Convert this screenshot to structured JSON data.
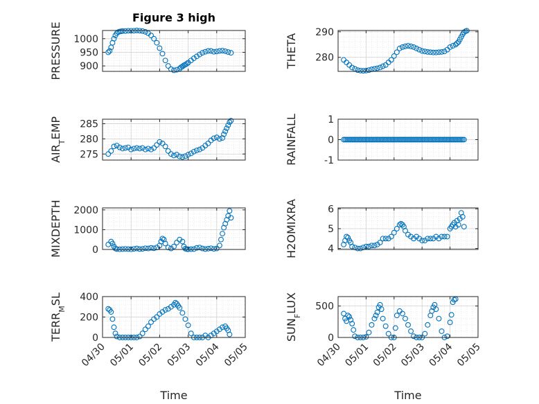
{
  "figure": {
    "title": "Figure 3 high",
    "marker_color": "#0072BD"
  },
  "chart_data": [
    {
      "type": "scatter",
      "ylabel": "PRESSURE",
      "title": "Figure 3 high",
      "xlabel": "",
      "xlim": [
        0,
        5
      ],
      "ylim": [
        880,
        1030
      ],
      "yticks": [
        900,
        950,
        1000
      ],
      "ytick_labels": [
        "900",
        "950",
        "1000"
      ],
      "grid": true,
      "x": [
        0.2,
        0.25,
        0.3,
        0.35,
        0.4,
        0.45,
        0.5,
        0.55,
        0.6,
        0.65,
        0.7,
        0.8,
        0.9,
        1.0,
        1.1,
        1.2,
        1.3,
        1.4,
        1.5,
        1.6,
        1.7,
        1.8,
        1.9,
        2.0,
        2.1,
        2.2,
        2.3,
        2.4,
        2.5,
        2.6,
        2.7,
        2.75,
        2.8,
        2.85,
        2.9,
        2.95,
        3.0,
        3.1,
        3.2,
        3.3,
        3.4,
        3.5,
        3.6,
        3.7,
        3.8,
        3.9,
        4.0,
        4.1,
        4.2,
        4.3,
        4.4,
        4.5
      ],
      "y": [
        950,
        955,
        968,
        985,
        1000,
        1012,
        1020,
        1024,
        1026,
        1027,
        1028,
        1028,
        1029,
        1029,
        1029,
        1030,
        1029,
        1028,
        1025,
        1020,
        1012,
        1000,
        985,
        965,
        945,
        920,
        900,
        888,
        884,
        886,
        890,
        895,
        898,
        902,
        905,
        908,
        912,
        920,
        928,
        935,
        942,
        948,
        952,
        955,
        955,
        952,
        953,
        955,
        956,
        954,
        951,
        948
      ]
    },
    {
      "type": "scatter",
      "ylabel": "THETA",
      "xlabel": "",
      "xlim": [
        0,
        5
      ],
      "ylim": [
        274.5,
        290.5
      ],
      "yticks": [
        280,
        290
      ],
      "ytick_labels": [
        "280",
        "290"
      ],
      "grid": true,
      "x": [
        0.2,
        0.3,
        0.4,
        0.5,
        0.6,
        0.7,
        0.8,
        0.9,
        1.0,
        1.1,
        1.2,
        1.3,
        1.4,
        1.5,
        1.6,
        1.7,
        1.8,
        1.9,
        2.0,
        2.1,
        2.2,
        2.3,
        2.4,
        2.5,
        2.6,
        2.7,
        2.8,
        2.9,
        3.0,
        3.1,
        3.2,
        3.3,
        3.4,
        3.5,
        3.6,
        3.7,
        3.8,
        3.9,
        4.0,
        4.1,
        4.2,
        4.25,
        4.3,
        4.35,
        4.4,
        4.45,
        4.5,
        4.55,
        4.6
      ],
      "y": [
        279,
        278,
        277,
        276,
        275.5,
        275,
        274.8,
        274.7,
        274.8,
        275,
        275.3,
        275.5,
        275.7,
        276,
        276.5,
        277,
        278,
        279,
        280.5,
        282,
        283.5,
        284,
        284.3,
        284.5,
        284.3,
        284,
        283.5,
        283,
        282.5,
        282.3,
        282.1,
        282,
        281.9,
        281.9,
        282,
        282.1,
        282.3,
        283,
        284,
        284.5,
        285,
        285.5,
        286,
        287,
        288,
        289,
        289.8,
        290.2,
        290.4
      ]
    },
    {
      "type": "scatter",
      "ylabel": "AIR_TEMP",
      "ylabel_parts": [
        "AIR",
        "T",
        "EMP"
      ],
      "xlabel": "",
      "xlim": [
        0,
        5
      ],
      "ylim": [
        273,
        286.5
      ],
      "yticks": [
        275,
        280,
        285
      ],
      "ytick_labels": [
        "275",
        "280",
        "285"
      ],
      "grid": true,
      "x": [
        0.2,
        0.3,
        0.4,
        0.5,
        0.6,
        0.7,
        0.8,
        0.9,
        1.0,
        1.1,
        1.2,
        1.3,
        1.4,
        1.5,
        1.6,
        1.7,
        1.8,
        1.9,
        2.0,
        2.1,
        2.2,
        2.3,
        2.4,
        2.5,
        2.6,
        2.7,
        2.8,
        2.9,
        3.0,
        3.1,
        3.2,
        3.3,
        3.4,
        3.5,
        3.6,
        3.7,
        3.8,
        3.9,
        4.0,
        4.1,
        4.2,
        4.25,
        4.3,
        4.35,
        4.4,
        4.45,
        4.5
      ],
      "y": [
        275,
        276,
        277.5,
        277.8,
        277.2,
        276.8,
        277,
        277.2,
        276.5,
        276.8,
        277,
        276.8,
        277,
        276.5,
        276.8,
        276.5,
        277,
        278,
        279,
        278.5,
        277.5,
        276,
        275,
        274.5,
        274.8,
        274.2,
        274,
        274.3,
        274.8,
        275.2,
        275.8,
        276.2,
        276.5,
        277,
        277.8,
        278.5,
        279.5,
        280.2,
        280.5,
        280,
        280.3,
        281.5,
        282.5,
        283.5,
        284.5,
        285.5,
        286
      ]
    },
    {
      "type": "scatter",
      "ylabel": "RAINFALL",
      "xlabel": "",
      "xlim": [
        0,
        5
      ],
      "ylim": [
        -1,
        1
      ],
      "yticks": [
        -1,
        0,
        1
      ],
      "ytick_labels": [
        "-1",
        "0",
        "1"
      ],
      "grid": true,
      "x": [
        0.2,
        0.25,
        0.3,
        0.35,
        0.4,
        0.45,
        0.5,
        0.55,
        0.6,
        0.65,
        0.7,
        0.75,
        0.8,
        0.85,
        0.9,
        0.95,
        1.0,
        1.05,
        1.1,
        1.15,
        1.2,
        1.25,
        1.3,
        1.35,
        1.4,
        1.45,
        1.5,
        1.55,
        1.6,
        1.65,
        1.7,
        1.75,
        1.8,
        1.85,
        1.9,
        1.95,
        2.0,
        2.05,
        2.1,
        2.15,
        2.2,
        2.25,
        2.3,
        2.35,
        2.4,
        2.45,
        2.5,
        2.55,
        2.6,
        2.65,
        2.7,
        2.75,
        2.8,
        2.85,
        2.9,
        2.95,
        3.0,
        3.05,
        3.1,
        3.15,
        3.2,
        3.25,
        3.3,
        3.35,
        3.4,
        3.45,
        3.5,
        3.55,
        3.6,
        3.65,
        3.7,
        3.75,
        3.8,
        3.85,
        3.9,
        3.95,
        4.0,
        4.05,
        4.1,
        4.15,
        4.2,
        4.25,
        4.3,
        4.35,
        4.4,
        4.45,
        4.5
      ],
      "y": [
        0,
        0,
        0,
        0,
        0,
        0,
        0,
        0,
        0,
        0,
        0,
        0,
        0,
        0,
        0,
        0,
        0,
        0,
        0,
        0,
        0,
        0,
        0,
        0,
        0,
        0,
        0,
        0,
        0,
        0,
        0,
        0,
        0,
        0,
        0,
        0,
        0,
        0,
        0,
        0,
        0,
        0,
        0,
        0,
        0,
        0,
        0,
        0,
        0,
        0,
        0,
        0,
        0,
        0,
        0,
        0,
        0,
        0,
        0,
        0,
        0,
        0,
        0,
        0,
        0,
        0,
        0,
        0,
        0,
        0,
        0,
        0,
        0,
        0,
        0,
        0,
        0,
        0,
        0,
        0,
        0,
        0,
        0,
        0,
        0,
        0,
        0
      ]
    },
    {
      "type": "scatter",
      "ylabel": "MIXDEPTH",
      "xlabel": "",
      "xlim": [
        0,
        5
      ],
      "ylim": [
        0,
        2100
      ],
      "yticks": [
        0,
        1000,
        2000
      ],
      "ytick_labels": [
        "0",
        "1000",
        "2000"
      ],
      "grid": true,
      "x": [
        0.2,
        0.3,
        0.35,
        0.4,
        0.45,
        0.5,
        0.6,
        0.7,
        0.8,
        0.9,
        1.0,
        1.1,
        1.2,
        1.3,
        1.4,
        1.5,
        1.6,
        1.7,
        1.8,
        1.9,
        2.0,
        2.05,
        2.1,
        2.15,
        2.2,
        2.3,
        2.4,
        2.5,
        2.6,
        2.7,
        2.8,
        2.85,
        2.9,
        2.95,
        3.0,
        3.1,
        3.2,
        3.3,
        3.4,
        3.5,
        3.6,
        3.7,
        3.8,
        3.9,
        4.0,
        4.1,
        4.15,
        4.2,
        4.25,
        4.3,
        4.35,
        4.4,
        4.45,
        4.5
      ],
      "y": [
        250,
        400,
        300,
        150,
        50,
        20,
        10,
        20,
        30,
        20,
        10,
        30,
        50,
        20,
        30,
        60,
        50,
        80,
        60,
        100,
        200,
        400,
        550,
        500,
        300,
        100,
        50,
        150,
        350,
        500,
        400,
        150,
        40,
        20,
        10,
        15,
        20,
        80,
        100,
        50,
        20,
        40,
        60,
        30,
        50,
        200,
        500,
        800,
        1100,
        1300,
        1500,
        1700,
        1950,
        1600
      ]
    },
    {
      "type": "scatter",
      "ylabel": "H2OMIXRA",
      "xlabel": "",
      "xlim": [
        0,
        5
      ],
      "ylim": [
        3.95,
        6.05
      ],
      "yticks": [
        4,
        5,
        6
      ],
      "ytick_labels": [
        "4",
        "5",
        "6"
      ],
      "grid": true,
      "x": [
        0.2,
        0.25,
        0.3,
        0.35,
        0.4,
        0.45,
        0.5,
        0.6,
        0.7,
        0.8,
        0.9,
        1.0,
        1.1,
        1.2,
        1.3,
        1.4,
        1.5,
        1.6,
        1.7,
        1.8,
        1.9,
        2.0,
        2.1,
        2.2,
        2.25,
        2.3,
        2.35,
        2.4,
        2.5,
        2.6,
        2.7,
        2.8,
        2.9,
        3.0,
        3.1,
        3.2,
        3.3,
        3.4,
        3.5,
        3.6,
        3.7,
        3.8,
        3.9,
        4.0,
        4.05,
        4.1,
        4.15,
        4.2,
        4.25,
        4.3,
        4.35,
        4.4,
        4.45,
        4.5
      ],
      "y": [
        4.2,
        4.4,
        4.6,
        4.55,
        4.4,
        4.3,
        4.1,
        4.05,
        4.0,
        4.0,
        4.05,
        4.1,
        4.1,
        4.15,
        4.15,
        4.2,
        4.3,
        4.5,
        4.5,
        4.5,
        4.6,
        4.8,
        5.0,
        5.2,
        5.25,
        5.2,
        5.1,
        4.9,
        4.7,
        4.6,
        4.5,
        4.6,
        4.5,
        4.4,
        4.4,
        4.5,
        4.5,
        4.5,
        4.6,
        4.5,
        4.6,
        4.6,
        4.6,
        5.0,
        5.1,
        5.2,
        5.3,
        5.1,
        5.4,
        5.2,
        5.5,
        5.8,
        5.6,
        5.1
      ]
    },
    {
      "type": "scatter",
      "ylabel": "TERR_MSL",
      "ylabel_parts": [
        "TERR",
        "M",
        "SL"
      ],
      "xlabel": "Time",
      "xlim": [
        0,
        5
      ],
      "ylim": [
        0,
        400
      ],
      "yticks": [
        0,
        200,
        400
      ],
      "ytick_labels": [
        "0",
        "200",
        "400"
      ],
      "xticks": [
        0,
        1,
        2,
        3,
        4,
        5
      ],
      "xtick_labels": [
        "04/30",
        "05/01",
        "05/02",
        "05/03",
        "05/04",
        "05/05"
      ],
      "grid": true,
      "x": [
        0.2,
        0.25,
        0.3,
        0.35,
        0.4,
        0.45,
        0.5,
        0.6,
        0.7,
        0.8,
        0.9,
        1.0,
        1.1,
        1.2,
        1.3,
        1.4,
        1.5,
        1.6,
        1.7,
        1.8,
        1.9,
        2.0,
        2.1,
        2.2,
        2.3,
        2.4,
        2.5,
        2.55,
        2.6,
        2.65,
        2.7,
        2.8,
        2.9,
        3.0,
        3.1,
        3.2,
        3.3,
        3.4,
        3.5,
        3.6,
        3.7,
        3.8,
        3.9,
        4.0,
        4.1,
        4.2,
        4.3,
        4.35,
        4.4,
        4.45
      ],
      "y": [
        280,
        270,
        250,
        180,
        100,
        40,
        10,
        0,
        0,
        0,
        0,
        0,
        0,
        0,
        10,
        40,
        80,
        110,
        150,
        180,
        200,
        230,
        250,
        270,
        280,
        300,
        320,
        340,
        330,
        310,
        290,
        240,
        180,
        120,
        40,
        0,
        0,
        0,
        0,
        20,
        0,
        20,
        40,
        60,
        80,
        100,
        110,
        90,
        70,
        30
      ]
    },
    {
      "type": "scatter",
      "ylabel": "SUN_FLUX",
      "ylabel_parts": [
        "SUN",
        "F",
        "LUX"
      ],
      "xlabel": "Time",
      "xlim": [
        0,
        5
      ],
      "ylim": [
        0,
        650
      ],
      "yticks": [
        0,
        500
      ],
      "ytick_labels": [
        "0",
        "500"
      ],
      "xticks": [
        0,
        1,
        2,
        3,
        4,
        5
      ],
      "xtick_labels": [
        "04/30",
        "05/01",
        "05/02",
        "05/03",
        "05/04",
        "05/05"
      ],
      "grid": true,
      "x": [
        0.2,
        0.25,
        0.3,
        0.35,
        0.4,
        0.45,
        0.5,
        0.55,
        0.6,
        0.7,
        0.8,
        0.9,
        1.0,
        1.1,
        1.2,
        1.3,
        1.35,
        1.4,
        1.45,
        1.5,
        1.55,
        1.6,
        1.7,
        1.8,
        1.9,
        2.0,
        2.05,
        2.1,
        2.2,
        2.3,
        2.4,
        2.5,
        2.6,
        2.7,
        2.8,
        2.9,
        3.0,
        3.1,
        3.2,
        3.3,
        3.35,
        3.4,
        3.45,
        3.5,
        3.6,
        3.7,
        3.8,
        3.9,
        4.0,
        4.05,
        4.1,
        4.15,
        4.2
      ],
      "y": [
        380,
        300,
        260,
        350,
        330,
        280,
        220,
        120,
        20,
        0,
        0,
        0,
        10,
        80,
        200,
        300,
        350,
        400,
        480,
        520,
        450,
        300,
        180,
        60,
        0,
        0,
        150,
        350,
        420,
        380,
        300,
        200,
        100,
        20,
        0,
        0,
        0,
        60,
        200,
        350,
        420,
        480,
        520,
        450,
        300,
        100,
        0,
        20,
        240,
        360,
        560,
        600,
        610
      ]
    }
  ]
}
